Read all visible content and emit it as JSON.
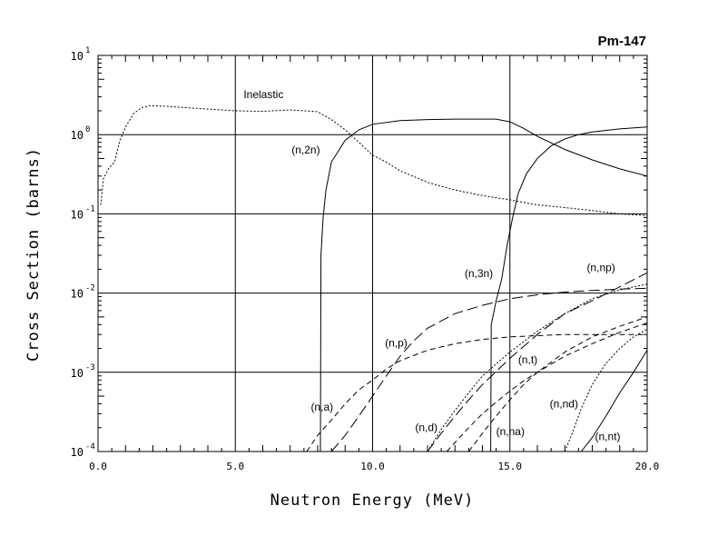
{
  "chart_data": {
    "type": "line",
    "title": "Pm-147",
    "xlabel": "Neutron Energy (MeV)",
    "ylabel": "Cross Section (barns)",
    "xlim": [
      0,
      20
    ],
    "ylim": [
      0.0001,
      10
    ],
    "yscale": "log",
    "grid": true,
    "x_ticks": [
      "0.0",
      "5.0",
      "10.0",
      "15.0",
      "20.0"
    ],
    "y_ticks": [
      {
        "base": "10",
        "exp": "1"
      },
      {
        "base": "10",
        "exp": "0"
      },
      {
        "base": "10",
        "exp": "-1"
      },
      {
        "base": "10",
        "exp": "-2"
      },
      {
        "base": "10",
        "exp": "-3"
      },
      {
        "base": "10",
        "exp": "-4"
      }
    ],
    "series": [
      {
        "name": "Inelastic",
        "style": "dotted",
        "label_at": [
          5.3,
          2.9
        ],
        "x": [
          0.1,
          0.2,
          0.4,
          0.6,
          0.8,
          1.0,
          1.3,
          1.6,
          1.9,
          2.5,
          3.5,
          5.0,
          6.0,
          7.0,
          7.5,
          8.0,
          8.5,
          9.0,
          9.5,
          10.0,
          10.5,
          11.0,
          12.0,
          13.0,
          14.0,
          15.0,
          16.0,
          17.0,
          18.0,
          19.0,
          20.0
        ],
        "y": [
          0.13,
          0.28,
          0.38,
          0.45,
          0.85,
          1.25,
          1.85,
          2.2,
          2.32,
          2.28,
          2.15,
          2.0,
          1.97,
          2.05,
          2.0,
          1.95,
          1.55,
          1.15,
          0.8,
          0.55,
          0.45,
          0.35,
          0.25,
          0.2,
          0.17,
          0.15,
          0.13,
          0.12,
          0.11,
          0.1,
          0.095
        ]
      },
      {
        "name": "(n,2n)",
        "style": "solid",
        "label_at": [
          7.05,
          0.58
        ],
        "x": [
          8.1,
          8.12,
          8.2,
          8.3,
          8.5,
          9.0,
          9.5,
          10.0,
          11.0,
          12.0,
          13.0,
          14.0,
          14.5,
          15.0,
          15.5,
          16.0,
          17.0,
          18.0,
          19.0,
          20.0
        ],
        "y": [
          0.0001,
          0.03,
          0.09,
          0.2,
          0.45,
          0.85,
          1.15,
          1.35,
          1.5,
          1.55,
          1.57,
          1.57,
          1.57,
          1.45,
          1.2,
          0.95,
          0.65,
          0.48,
          0.37,
          0.3
        ]
      },
      {
        "name": "(n,3n)",
        "style": "solid",
        "label_at": [
          13.35,
          0.016
        ],
        "x": [
          14.3,
          14.32,
          14.5,
          14.7,
          14.9,
          15.1,
          15.3,
          15.6,
          16.0,
          16.5,
          17.0,
          17.5,
          18.0,
          19.0,
          20.0
        ],
        "y": [
          0.0001,
          0.004,
          0.008,
          0.015,
          0.04,
          0.09,
          0.18,
          0.32,
          0.5,
          0.72,
          0.88,
          1.0,
          1.08,
          1.18,
          1.25
        ]
      },
      {
        "name": "(n,p)",
        "style": "long-dash",
        "label_at": [
          10.45,
          0.0021
        ],
        "x": [
          8.5,
          9.0,
          9.5,
          10.0,
          10.5,
          11.0,
          11.5,
          12.0,
          13.0,
          14.0,
          15.0,
          16.0,
          17.0,
          18.0,
          19.0,
          20.0
        ],
        "y": [
          0.0001,
          0.00016,
          0.00028,
          0.0005,
          0.0009,
          0.0016,
          0.0025,
          0.0036,
          0.0055,
          0.007,
          0.0085,
          0.0095,
          0.0103,
          0.0108,
          0.0112,
          0.0115
        ]
      },
      {
        "name": "(n,a)",
        "style": "dashed",
        "label_at": [
          7.75,
          0.00033
        ],
        "x": [
          7.6,
          8.0,
          8.5,
          9.0,
          9.5,
          10.0,
          10.5,
          11.0,
          12.0,
          13.0,
          14.0,
          15.0,
          16.0,
          17.0,
          18.0,
          19.0,
          20.0
        ],
        "y": [
          0.0001,
          0.00016,
          0.00025,
          0.0004,
          0.0006,
          0.0008,
          0.0011,
          0.0014,
          0.0019,
          0.0023,
          0.0026,
          0.0028,
          0.0029,
          0.003,
          0.003,
          0.003,
          0.003
        ]
      },
      {
        "name": "(n,np)",
        "style": "long-dash",
        "label_at": [
          17.8,
          0.019
        ],
        "x": [
          12.0,
          12.5,
          13.0,
          13.5,
          14.0,
          15.0,
          16.0,
          17.0,
          18.0,
          19.0,
          20.0
        ],
        "y": [
          0.0001,
          0.00017,
          0.00028,
          0.00045,
          0.0007,
          0.0015,
          0.003,
          0.0055,
          0.008,
          0.012,
          0.018
        ]
      },
      {
        "name": "(n,d)",
        "style": "dotted",
        "label_at": [
          11.55,
          0.00018
        ],
        "x": [
          12.0,
          12.5,
          13.0,
          13.5,
          14.0,
          15.0,
          16.0,
          17.0,
          18.0,
          19.0,
          20.0
        ],
        "y": [
          0.0001,
          0.00019,
          0.00033,
          0.00055,
          0.0009,
          0.0018,
          0.0033,
          0.0055,
          0.0085,
          0.011,
          0.013
        ]
      },
      {
        "name": "(n,t)",
        "style": "dashed",
        "label_at": [
          15.3,
          0.0013
        ],
        "x": [
          12.7,
          13.0,
          13.5,
          14.0,
          14.5,
          15.0,
          15.5,
          16.0,
          17.0,
          18.0,
          19.0,
          20.0
        ],
        "y": [
          0.0001,
          0.00013,
          0.0002,
          0.0003,
          0.00042,
          0.00058,
          0.00078,
          0.001,
          0.0016,
          0.0023,
          0.0032,
          0.0042
        ]
      },
      {
        "name": "(n,na)",
        "style": "dashed",
        "label_at": [
          14.5,
          0.00016
        ],
        "x": [
          13.5,
          14.0,
          14.5,
          15.0,
          15.5,
          16.0,
          17.0,
          18.0,
          19.0,
          20.0
        ],
        "y": [
          0.0001,
          0.00017,
          0.00028,
          0.00045,
          0.0007,
          0.001,
          0.0018,
          0.0028,
          0.0038,
          0.005
        ]
      },
      {
        "name": "(n,nd)",
        "style": "dotted",
        "label_at": [
          16.45,
          0.00036
        ],
        "x": [
          17.0,
          17.3,
          17.6,
          18.0,
          18.5,
          19.0,
          19.5,
          20.0
        ],
        "y": [
          0.0001,
          0.00018,
          0.00035,
          0.0007,
          0.0013,
          0.002,
          0.0028,
          0.0035
        ]
      },
      {
        "name": "(n,nt)",
        "style": "solid",
        "label_at": [
          18.1,
          0.00014
        ],
        "x": [
          17.6,
          18.0,
          18.5,
          19.0,
          19.5,
          20.0
        ],
        "y": [
          0.0001,
          0.00015,
          0.00028,
          0.00055,
          0.001,
          0.0019
        ]
      }
    ]
  }
}
